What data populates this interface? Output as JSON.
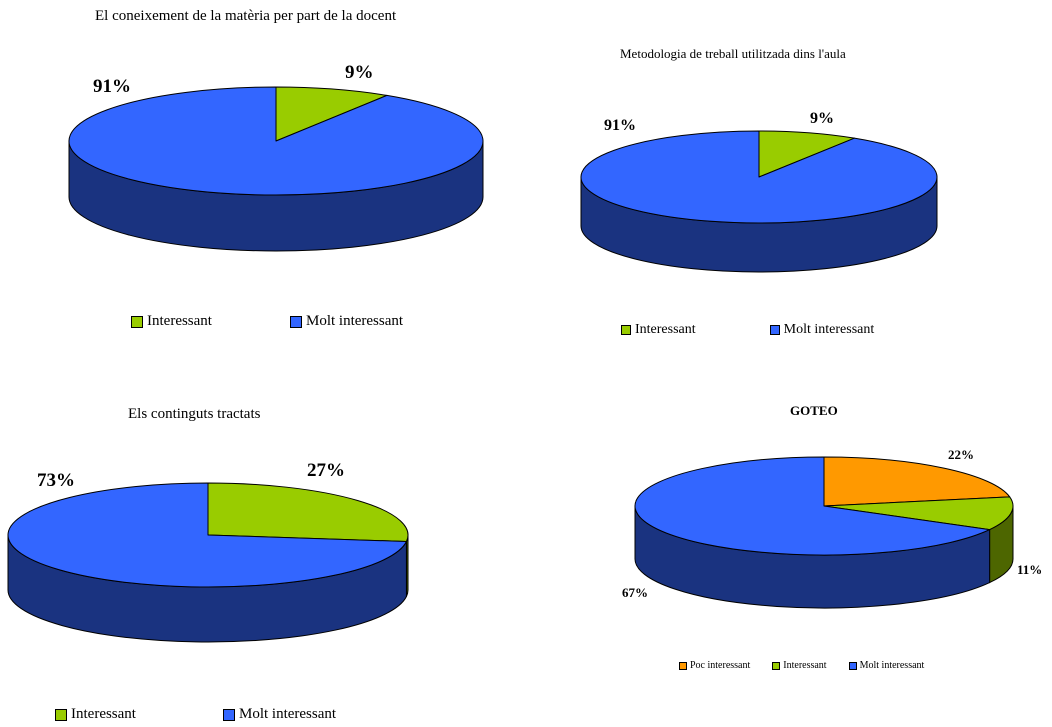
{
  "colors": {
    "interessant": "#99CC00",
    "molt_interessant": "#3366FF",
    "poc_interessant": "#FF9900",
    "blue_side": "#1A3380",
    "green_side": "#4D6600",
    "orange_side": "#804C00"
  },
  "chart_data": [
    {
      "type": "pie",
      "title": "El coneixement de la matèria per part de la docent",
      "categories": [
        "Interessant",
        "Molt interessant"
      ],
      "values": [
        9,
        91
      ],
      "labels": [
        "9%",
        "91%"
      ],
      "legend": [
        "Interessant",
        "Molt interessant"
      ]
    },
    {
      "type": "pie",
      "title": "Metodologia de treball utilitzada dins l'aula",
      "categories": [
        "Interessant",
        "Molt interessant"
      ],
      "values": [
        9,
        91
      ],
      "labels": [
        "9%",
        "91%"
      ],
      "legend": [
        "Interessant",
        "Molt interessant"
      ]
    },
    {
      "type": "pie",
      "title": "Els continguts tractats",
      "categories": [
        "Interessant",
        "Molt interessant"
      ],
      "values": [
        27,
        73
      ],
      "labels": [
        "27%",
        "73%"
      ],
      "legend": [
        "Interessant",
        "Molt interessant"
      ]
    },
    {
      "type": "pie",
      "title": "GOTEO",
      "categories": [
        "Poc interessant",
        "Interessant",
        "Molt interessant"
      ],
      "values": [
        22,
        11,
        67
      ],
      "labels": [
        "22%",
        "11%",
        "67%"
      ],
      "legend": [
        "Poc interessant",
        "Interessant",
        "Molt interessant"
      ]
    }
  ]
}
